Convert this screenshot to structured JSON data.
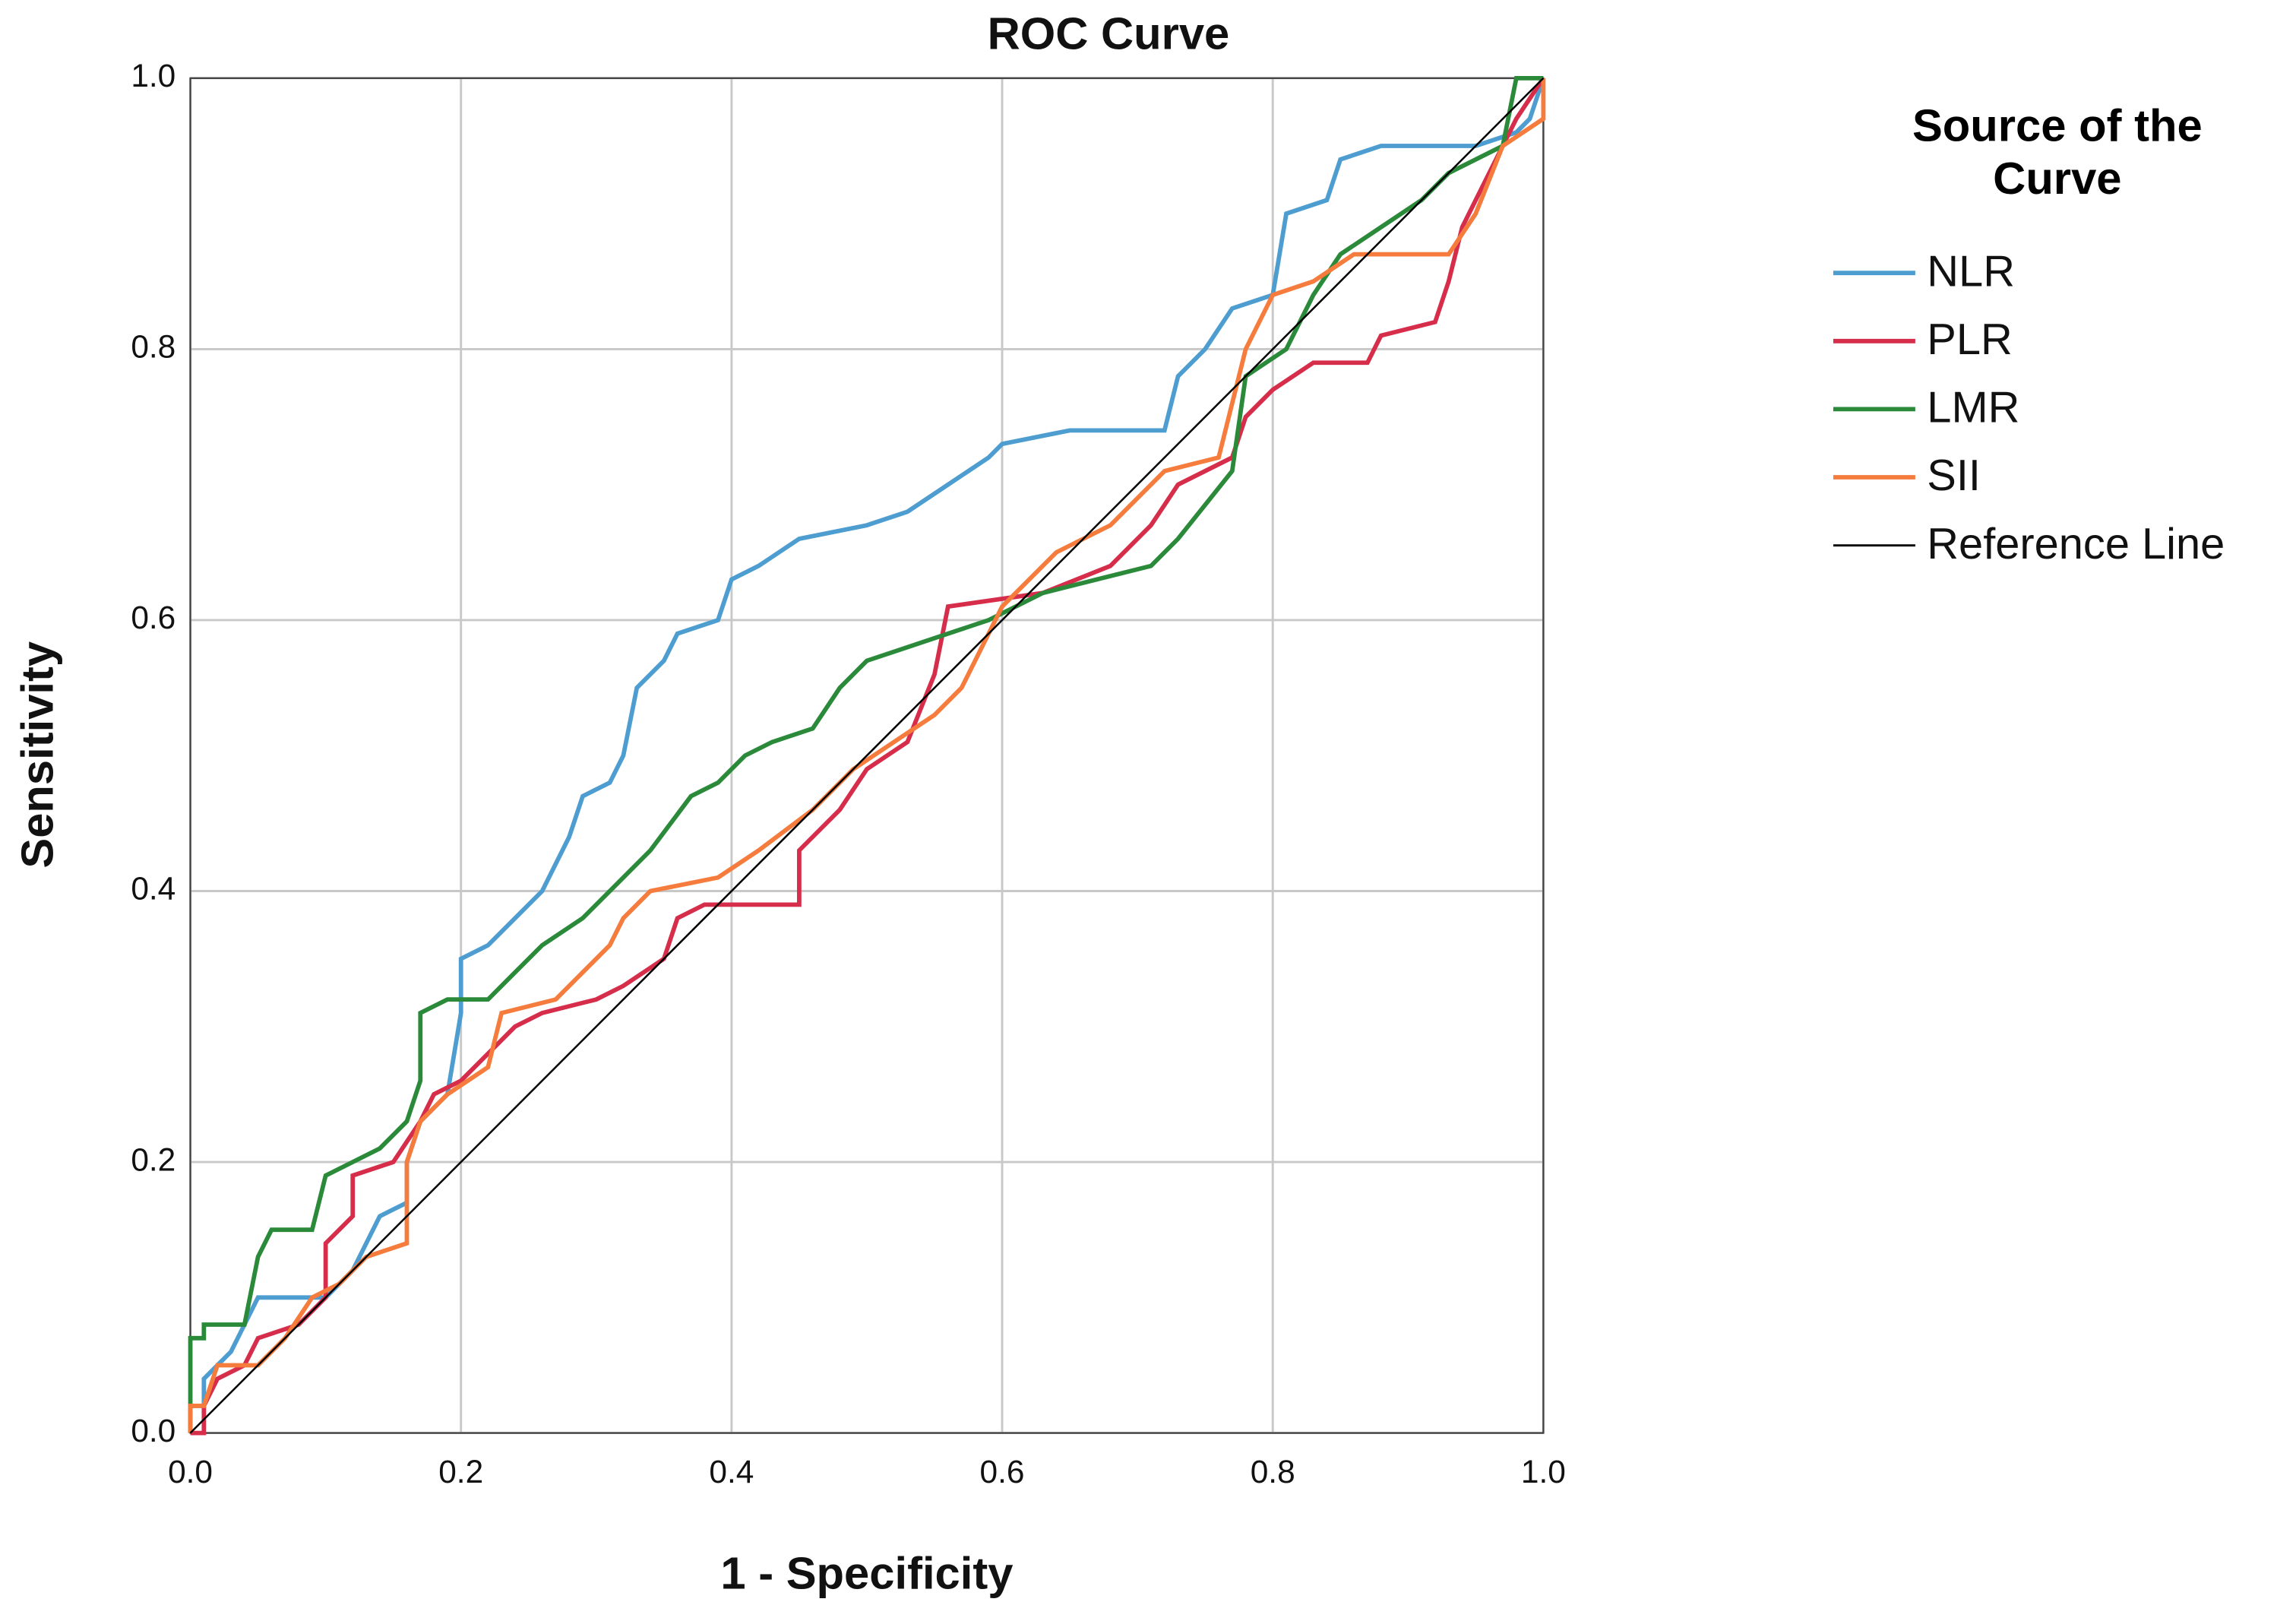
{
  "chart_data": {
    "type": "line",
    "title": "ROC Curve",
    "xlabel": "1 - Specificity",
    "ylabel": "Sensitivity",
    "legend_title": "Source of the Curve",
    "legend": "right",
    "grid": true,
    "xlim": [
      0,
      1
    ],
    "ylim": [
      0,
      1
    ],
    "xticks": [
      {
        "value": 0,
        "label": "0.0"
      },
      0.2,
      0.4,
      0.6,
      0.8,
      {
        "value": 1,
        "label": "1.0"
      }
    ],
    "yticks": [
      {
        "value": 0,
        "label": "0.0"
      },
      0.2,
      0.4,
      0.6,
      0.8,
      {
        "value": 1,
        "label": "1.0"
      }
    ],
    "series": [
      {
        "name": "NLR",
        "color": "#4e9dd1",
        "x": [
          0,
          0,
          0.01,
          0.01,
          0.03,
          0.04,
          0.05,
          0.1,
          0.12,
          0.13,
          0.14,
          0.16,
          0.16,
          0.17,
          0.19,
          0.2,
          0.2,
          0.22,
          0.24,
          0.26,
          0.28,
          0.29,
          0.31,
          0.32,
          0.33,
          0.35,
          0.36,
          0.39,
          0.4,
          0.42,
          0.45,
          0.5,
          0.53,
          0.56,
          0.59,
          0.6,
          0.65,
          0.72,
          0.73,
          0.75,
          0.77,
          0.8,
          0.81,
          0.84,
          0.85,
          0.88,
          0.95,
          0.98,
          0.99,
          1
        ],
        "values": [
          0,
          0.02,
          0.02,
          0.04,
          0.06,
          0.08,
          0.1,
          0.1,
          0.12,
          0.14,
          0.16,
          0.17,
          0.2,
          0.23,
          0.25,
          0.31,
          0.35,
          0.36,
          0.38,
          0.4,
          0.44,
          0.47,
          0.48,
          0.5,
          0.55,
          0.57,
          0.59,
          0.6,
          0.63,
          0.64,
          0.66,
          0.67,
          0.68,
          0.7,
          0.72,
          0.73,
          0.74,
          0.74,
          0.78,
          0.8,
          0.83,
          0.84,
          0.9,
          0.91,
          0.94,
          0.95,
          0.95,
          0.96,
          0.97,
          1
        ]
      },
      {
        "name": "PLR",
        "color": "#d62d4b",
        "x": [
          0,
          0.01,
          0.01,
          0.02,
          0.04,
          0.05,
          0.08,
          0.1,
          0.1,
          0.12,
          0.12,
          0.15,
          0.17,
          0.18,
          0.2,
          0.22,
          0.24,
          0.26,
          0.3,
          0.32,
          0.35,
          0.36,
          0.38,
          0.45,
          0.45,
          0.48,
          0.5,
          0.53,
          0.55,
          0.56,
          0.63,
          0.68,
          0.71,
          0.73,
          0.77,
          0.78,
          0.8,
          0.83,
          0.87,
          0.88,
          0.92,
          0.93,
          0.94,
          0.96,
          0.98,
          1
        ],
        "values": [
          0,
          0,
          0.02,
          0.04,
          0.05,
          0.07,
          0.08,
          0.1,
          0.14,
          0.16,
          0.19,
          0.2,
          0.23,
          0.25,
          0.26,
          0.28,
          0.3,
          0.31,
          0.32,
          0.33,
          0.35,
          0.38,
          0.39,
          0.39,
          0.43,
          0.46,
          0.49,
          0.51,
          0.56,
          0.61,
          0.62,
          0.64,
          0.67,
          0.7,
          0.72,
          0.75,
          0.77,
          0.79,
          0.79,
          0.81,
          0.82,
          0.85,
          0.89,
          0.93,
          0.97,
          1
        ]
      },
      {
        "name": "LMR",
        "color": "#2a8a3a",
        "x": [
          0,
          0,
          0.01,
          0.01,
          0.04,
          0.05,
          0.06,
          0.09,
          0.1,
          0.12,
          0.14,
          0.16,
          0.17,
          0.17,
          0.19,
          0.22,
          0.24,
          0.26,
          0.29,
          0.32,
          0.34,
          0.37,
          0.39,
          0.41,
          0.43,
          0.46,
          0.48,
          0.5,
          0.53,
          0.56,
          0.59,
          0.63,
          0.67,
          0.71,
          0.73,
          0.77,
          0.78,
          0.81,
          0.83,
          0.85,
          0.88,
          0.91,
          0.93,
          0.97,
          0.98,
          1
        ],
        "values": [
          0,
          0.07,
          0.07,
          0.08,
          0.08,
          0.13,
          0.15,
          0.15,
          0.19,
          0.2,
          0.21,
          0.23,
          0.26,
          0.31,
          0.32,
          0.32,
          0.34,
          0.36,
          0.38,
          0.41,
          0.43,
          0.47,
          0.48,
          0.5,
          0.51,
          0.52,
          0.55,
          0.57,
          0.58,
          0.59,
          0.6,
          0.62,
          0.63,
          0.64,
          0.66,
          0.71,
          0.78,
          0.8,
          0.84,
          0.87,
          0.89,
          0.91,
          0.93,
          0.95,
          1,
          1
        ]
      },
      {
        "name": "SII",
        "color": "#f57c3d",
        "x": [
          0,
          0,
          0.01,
          0.02,
          0.05,
          0.07,
          0.09,
          0.11,
          0.13,
          0.16,
          0.16,
          0.17,
          0.19,
          0.22,
          0.23,
          0.27,
          0.29,
          0.31,
          0.32,
          0.34,
          0.39,
          0.42,
          0.46,
          0.49,
          0.52,
          0.55,
          0.57,
          0.6,
          0.64,
          0.68,
          0.72,
          0.76,
          0.78,
          0.8,
          0.83,
          0.86,
          0.93,
          0.95,
          0.97,
          1,
          1
        ],
        "values": [
          0,
          0.02,
          0.02,
          0.05,
          0.05,
          0.07,
          0.1,
          0.11,
          0.13,
          0.14,
          0.2,
          0.23,
          0.25,
          0.27,
          0.31,
          0.32,
          0.34,
          0.36,
          0.38,
          0.4,
          0.41,
          0.43,
          0.46,
          0.49,
          0.51,
          0.53,
          0.55,
          0.61,
          0.65,
          0.67,
          0.71,
          0.72,
          0.8,
          0.84,
          0.85,
          0.87,
          0.87,
          0.9,
          0.95,
          0.97,
          1
        ]
      },
      {
        "name": "Reference Line",
        "color": "#000000",
        "x": [
          0,
          1
        ],
        "values": [
          0,
          1
        ]
      }
    ]
  }
}
